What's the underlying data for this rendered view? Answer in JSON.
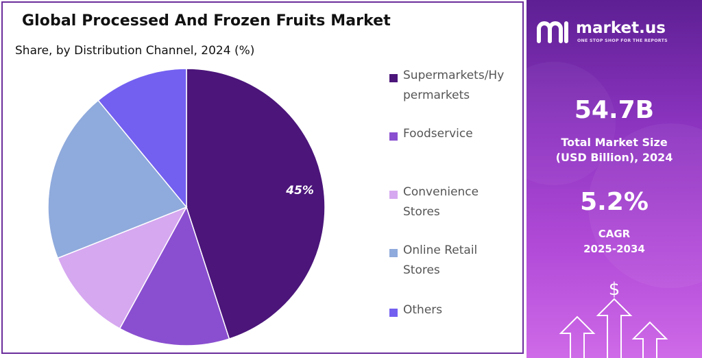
{
  "title": "Global Processed And Frozen Fruits Market",
  "subtitle": "Share, by Distribution Channel, 2024 (%)",
  "chart_data": {
    "type": "pie",
    "title": "Global Processed And Frozen Fruits Market",
    "subtitle": "Share, by Distribution Channel, 2024 (%)",
    "categories": [
      "Supermarkets/Hypermarkets",
      "Foodservice",
      "Convenience Stores",
      "Online Retail Stores",
      "Others"
    ],
    "values": [
      45,
      13,
      11,
      20,
      11
    ],
    "data_labels": [
      "45%",
      "",
      "",
      "",
      ""
    ],
    "colors": [
      "#4b157a",
      "#8a4fd0",
      "#d6a8f0",
      "#8faadc",
      "#7360f0"
    ],
    "legend_position": "right"
  },
  "legend": [
    {
      "label": "Supermarkets/Hy\npermarkets",
      "color": "#4b157a"
    },
    {
      "label": "Foodservice",
      "color": "#8a4fd0"
    },
    {
      "label": "Convenience\nStores",
      "color": "#d6a8f0"
    },
    {
      "label": "Online Retail\nStores",
      "color": "#8faadc"
    },
    {
      "label": "Others",
      "color": "#7360f0"
    }
  ],
  "brand": {
    "name": "market.us",
    "tagline": "ONE STOP SHOP FOR THE REPORTS"
  },
  "stats": {
    "market_size_value": "54.7B",
    "market_size_label_1": "Total Market Size",
    "market_size_label_2": "(USD Billion), 2024",
    "cagr_value": "5.2%",
    "cagr_label_1": "CAGR",
    "cagr_label_2": "2025-2034"
  },
  "decor_icon": "dollar-arrows-icon",
  "dollar_symbol": "$"
}
